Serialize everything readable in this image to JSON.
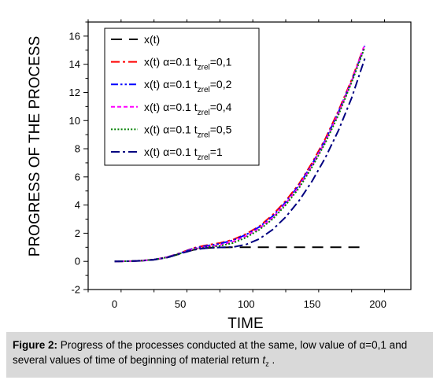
{
  "chart_data": {
    "type": "line",
    "xlabel": "TIME",
    "ylabel": "PROGRESS OF THE PROCESS",
    "xlim": [
      -20,
      225
    ],
    "ylim": [
      -2,
      17
    ],
    "xticks": [
      0,
      50,
      100,
      150,
      200
    ],
    "yticks": [
      -2,
      0,
      2,
      4,
      6,
      8,
      10,
      12,
      14,
      16
    ],
    "grid": false,
    "legend_position": "top-left",
    "series": [
      {
        "name": "x(t)",
        "color": "#000000",
        "dash": "long-dash",
        "x": [
          0,
          10,
          20,
          30,
          40,
          50,
          60,
          70,
          80,
          90,
          100,
          120,
          140,
          160,
          180,
          190
        ],
        "y": [
          0,
          0.01,
          0.04,
          0.12,
          0.27,
          0.55,
          0.82,
          0.95,
          0.99,
          1.0,
          1.0,
          1.0,
          1.0,
          1.0,
          1.0,
          1.0
        ]
      },
      {
        "name": "x(t) α=0.1 tzrel=0,1",
        "name_parts": {
          "prefix": "x(t) α=0.1 t",
          "sub": "zrel",
          "suffix": "=0,1"
        },
        "color": "#ff0000",
        "dash": "dash-dot",
        "x": [
          0,
          10,
          20,
          30,
          40,
          50,
          60,
          70,
          80,
          90,
          100,
          110,
          120,
          130,
          140,
          150,
          160,
          170,
          180,
          190
        ],
        "y": [
          0,
          0.01,
          0.05,
          0.13,
          0.3,
          0.6,
          0.95,
          1.15,
          1.3,
          1.55,
          1.95,
          2.5,
          3.3,
          4.3,
          5.5,
          7.0,
          8.7,
          10.7,
          12.9,
          15.4
        ]
      },
      {
        "name": "x(t) α=0.1 tzrel=0,2",
        "name_parts": {
          "prefix": "x(t) α=0.1 t",
          "sub": "zrel",
          "suffix": "=0,2"
        },
        "color": "#0000ff",
        "dash": "dash-dot-dot",
        "x": [
          0,
          10,
          20,
          30,
          40,
          50,
          60,
          70,
          80,
          90,
          100,
          110,
          120,
          130,
          140,
          150,
          160,
          170,
          180,
          190
        ],
        "y": [
          0,
          0.01,
          0.05,
          0.13,
          0.3,
          0.58,
          0.92,
          1.1,
          1.25,
          1.5,
          1.9,
          2.45,
          3.2,
          4.2,
          5.4,
          6.9,
          8.6,
          10.6,
          12.8,
          15.3
        ]
      },
      {
        "name": "x(t) α=0.1 tzrel=0,4",
        "name_parts": {
          "prefix": "x(t) α=0.1 t",
          "sub": "zrel",
          "suffix": "=0,4"
        },
        "color": "#ff00ff",
        "dash": "short-dash",
        "x": [
          0,
          10,
          20,
          30,
          40,
          50,
          60,
          70,
          80,
          90,
          100,
          110,
          120,
          130,
          140,
          150,
          160,
          170,
          180,
          190
        ],
        "y": [
          0,
          0.01,
          0.05,
          0.13,
          0.29,
          0.57,
          0.88,
          1.03,
          1.15,
          1.4,
          1.8,
          2.35,
          3.1,
          4.1,
          5.3,
          6.8,
          8.5,
          10.5,
          12.8,
          15.4
        ]
      },
      {
        "name": "x(t) α=0.1 tzrel=0,5",
        "name_parts": {
          "prefix": "x(t) α=0.1 t",
          "sub": "zrel",
          "suffix": "=0,5"
        },
        "color": "#008000",
        "dash": "dot",
        "x": [
          0,
          10,
          20,
          30,
          40,
          50,
          60,
          70,
          80,
          90,
          100,
          110,
          120,
          130,
          140,
          150,
          160,
          170,
          180,
          190
        ],
        "y": [
          0,
          0.01,
          0.05,
          0.13,
          0.28,
          0.56,
          0.85,
          1.0,
          1.1,
          1.3,
          1.7,
          2.25,
          3.0,
          4.0,
          5.2,
          6.7,
          8.4,
          10.4,
          12.7,
          15.2
        ]
      },
      {
        "name": "x(t) α=0.1 tzrel=1",
        "name_parts": {
          "prefix": "x(t) α=0.1 t",
          "sub": "zrel",
          "suffix": "=1"
        },
        "color": "#000080",
        "dash": "dash-dot",
        "x": [
          0,
          10,
          20,
          30,
          40,
          50,
          60,
          70,
          80,
          90,
          100,
          110,
          120,
          130,
          140,
          150,
          160,
          170,
          180,
          190
        ],
        "y": [
          0,
          0.01,
          0.04,
          0.12,
          0.27,
          0.55,
          0.82,
          0.95,
          0.99,
          1.02,
          1.2,
          1.6,
          2.25,
          3.15,
          4.3,
          5.7,
          7.35,
          9.3,
          11.6,
          14.4
        ]
      }
    ]
  },
  "caption": {
    "label": "Figure 2:",
    "text_1": " Progress of the processes conducted at the same, low value of α=0,1  and several values of time of beginning of material return ",
    "var": "t",
    "var_sub": "z",
    "text_2": " ."
  }
}
